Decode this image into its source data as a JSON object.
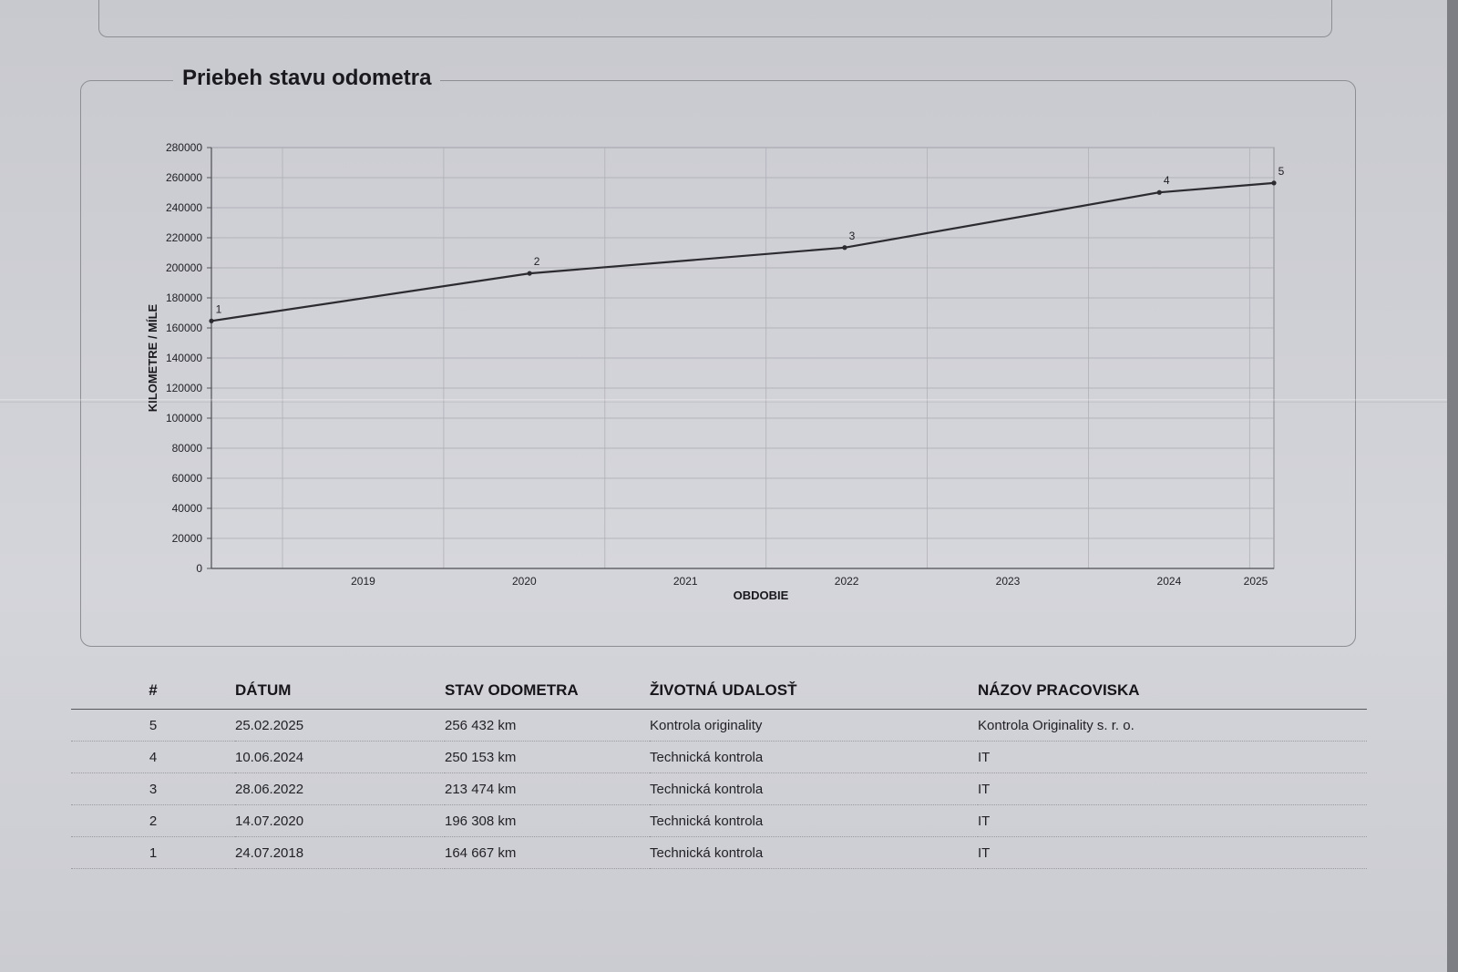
{
  "section_title": "Priebeh stavu odometra",
  "chart_data": {
    "type": "line",
    "title": "Priebeh stavu odometra",
    "xlabel": "OBDOBIE",
    "ylabel": "KILOMETRE / MÍLE",
    "ylim": [
      0,
      280000
    ],
    "y_ticks": [
      "0",
      "20000",
      "40000",
      "60000",
      "80000",
      "100000",
      "120000",
      "140000",
      "160000",
      "180000",
      "200000",
      "220000",
      "240000",
      "260000",
      "280000"
    ],
    "x_ticks": [
      "2019",
      "2020",
      "2021",
      "2022",
      "2023",
      "2024",
      "2025"
    ],
    "grid": true,
    "legend": "none",
    "line_color": "#2b2b30",
    "points": [
      {
        "label": "1",
        "x": "2018-07-24",
        "y": 164667
      },
      {
        "label": "2",
        "x": "2020-07-14",
        "y": 196308
      },
      {
        "label": "3",
        "x": "2022-06-28",
        "y": 213474
      },
      {
        "label": "4",
        "x": "2024-06-10",
        "y": 250153
      },
      {
        "label": "5",
        "x": "2025-02-25",
        "y": 256432
      }
    ]
  },
  "table": {
    "headers": [
      "#",
      "DÁTUM",
      "STAV ODOMETRA",
      "ŽIVOTNÁ UDALOSŤ",
      "NÁZOV PRACOVISKA"
    ],
    "rows": [
      [
        "5",
        "25.02.2025",
        "256 432 km",
        "Kontrola originality",
        "Kontrola Originality s. r. o."
      ],
      [
        "4",
        "10.06.2024",
        "250 153 km",
        "Technická kontrola",
        "IT"
      ],
      [
        "3",
        "28.06.2022",
        "213 474 km",
        "Technická kontrola",
        "IT"
      ],
      [
        "2",
        "14.07.2020",
        "196 308 km",
        "Technická kontrola",
        "IT"
      ],
      [
        "1",
        "24.07.2018",
        "164 667 km",
        "Technická kontrola",
        "IT"
      ]
    ]
  }
}
